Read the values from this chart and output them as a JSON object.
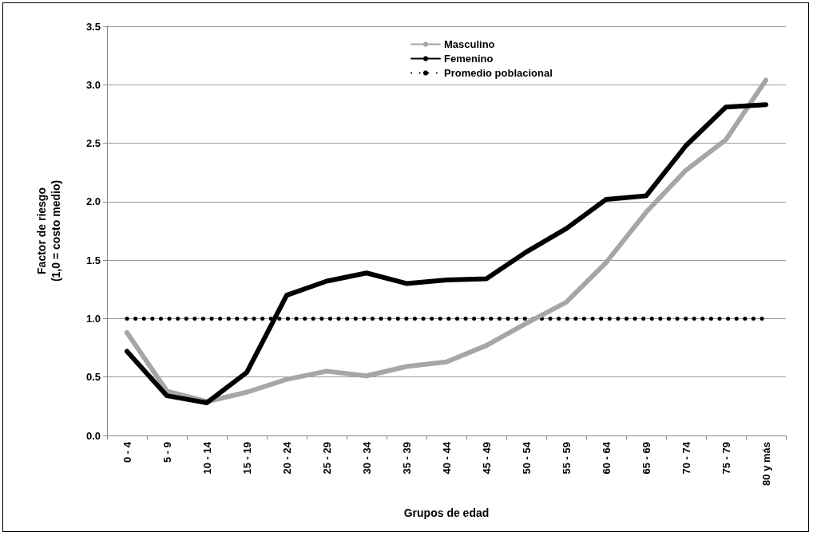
{
  "chart_data": {
    "type": "line",
    "xlabel": "Grupos de edad",
    "ylabel": "Factor de riesgo\n(1,0 = costo medio)",
    "categories": [
      "0 - 4",
      "5 - 9",
      "10 - 14",
      "15 - 19",
      "20 - 24",
      "25 - 29",
      "30 - 34",
      "35 - 39",
      "40 - 44",
      "45 - 49",
      "50 - 54",
      "55 - 59",
      "60 - 64",
      "65 - 69",
      "70 - 74",
      "75 - 79",
      "80 y más"
    ],
    "series": [
      {
        "name": "Masculino",
        "color": "#a6a6a6",
        "values": [
          0.88,
          0.38,
          0.29,
          0.37,
          0.48,
          0.55,
          0.51,
          0.59,
          0.63,
          0.77,
          0.96,
          1.14,
          1.48,
          1.91,
          2.27,
          2.53,
          3.04
        ]
      },
      {
        "name": "Femenino",
        "color": "#000000",
        "values": [
          0.72,
          0.34,
          0.28,
          0.54,
          1.2,
          1.32,
          1.39,
          1.3,
          1.33,
          1.34,
          1.57,
          1.77,
          2.02,
          2.05,
          2.48,
          2.81,
          2.83
        ]
      },
      {
        "name": "Promedio poblacional",
        "color": "#000000",
        "line_style": "dotted",
        "values": [
          1,
          1,
          1,
          1,
          1,
          1,
          1,
          1,
          1,
          1,
          1,
          1,
          1,
          1,
          1,
          1,
          1
        ]
      }
    ],
    "ylim": [
      0,
      3.5
    ],
    "yticks": [
      {
        "value": 0,
        "label": "0.0"
      },
      {
        "value": 0.5,
        "label": "0.5"
      },
      {
        "value": 1,
        "label": "1.0"
      },
      {
        "value": 1.5,
        "label": "1.5"
      },
      {
        "value": 2,
        "label": "2.0"
      },
      {
        "value": 2.5,
        "label": "2.5"
      },
      {
        "value": 3,
        "label": "3.0"
      },
      {
        "value": 3.5,
        "label": "3.5"
      }
    ],
    "grid": "y",
    "legend": "top",
    "marker": "none",
    "line_style": "solid"
  }
}
